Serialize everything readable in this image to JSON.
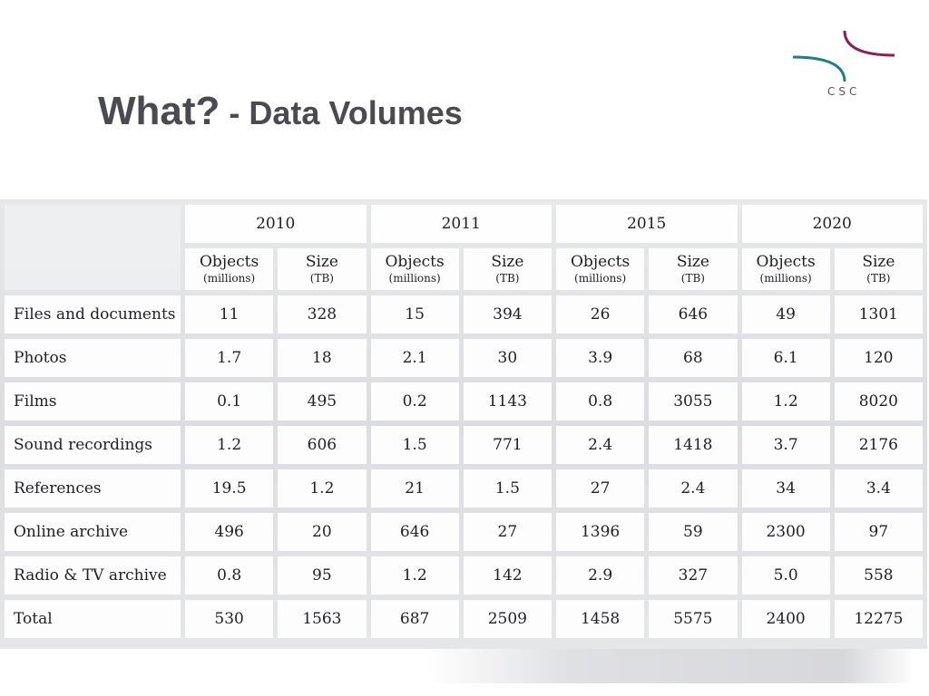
{
  "slide": {
    "title_main": "What?",
    "title_sub": " - Data Volumes",
    "logo_text": "CSC"
  },
  "brand_colors": {
    "teal": "#1f7f86",
    "magenta": "#8a1d5a"
  },
  "table": {
    "years": [
      "2010",
      "2011",
      "2015",
      "2020"
    ],
    "subheaders": {
      "objects": "Objects",
      "objects_unit": "(millions)",
      "size": "Size",
      "size_unit": "(TB)"
    },
    "rows": [
      {
        "label": "Files and documents",
        "values": [
          "11",
          "328",
          "15",
          "394",
          "26",
          "646",
          "49",
          "1301"
        ]
      },
      {
        "label": "Photos",
        "values": [
          "1.7",
          "18",
          "2.1",
          "30",
          "3.9",
          "68",
          "6.1",
          "120"
        ]
      },
      {
        "label": "Films",
        "values": [
          "0.1",
          "495",
          "0.2",
          "1143",
          "0.8",
          "3055",
          "1.2",
          "8020"
        ]
      },
      {
        "label": "Sound recordings",
        "values": [
          "1.2",
          "606",
          "1.5",
          "771",
          "2.4",
          "1418",
          "3.7",
          "2176"
        ]
      },
      {
        "label": "References",
        "values": [
          "19.5",
          "1.2",
          "21",
          "1.5",
          "27",
          "2.4",
          "34",
          "3.4"
        ]
      },
      {
        "label": "Online archive",
        "values": [
          "496",
          "20",
          "646",
          "27",
          "1396",
          "59",
          "2300",
          "97"
        ]
      },
      {
        "label": "Radio & TV archive",
        "values": [
          "0.8",
          "95",
          "1.2",
          "142",
          "2.9",
          "327",
          "5.0",
          "558"
        ]
      },
      {
        "label": "Total",
        "values": [
          "530",
          "1563",
          "687",
          "2509",
          "1458",
          "5575",
          "2400",
          "12275"
        ]
      }
    ]
  }
}
